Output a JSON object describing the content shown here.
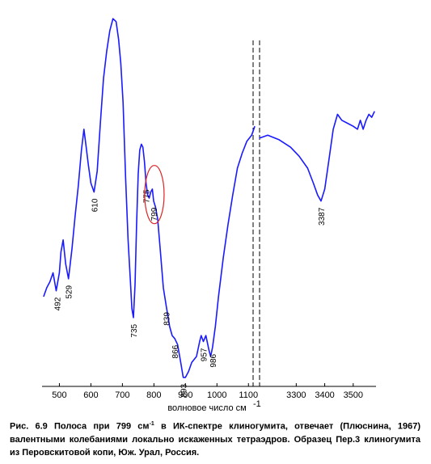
{
  "chart_data": {
    "type": "line",
    "xlabel": "волновое число см",
    "xlabel_superscript": "-1",
    "x_ticks_left": [
      500,
      600,
      700,
      800,
      900,
      1000,
      1100
    ],
    "x_ticks_right": [
      3300,
      3400,
      3500
    ],
    "xlim_left": [
      445,
      1125
    ],
    "xlim_right": [
      3160,
      3580
    ],
    "axis_break_at": 1125,
    "line_color": "#1a1aff",
    "highlight_color": "#dd2222",
    "series_left": {
      "x": [
        450,
        460,
        470,
        480,
        490,
        500,
        505,
        512,
        520,
        529,
        540,
        550,
        560,
        570,
        578,
        585,
        592,
        600,
        610,
        620,
        630,
        640,
        650,
        660,
        670,
        680,
        688,
        695,
        702,
        710,
        718,
        725,
        730,
        735,
        740,
        745,
        750,
        755,
        760,
        765,
        770,
        775,
        780,
        785,
        790,
        795,
        799,
        805,
        812,
        820,
        830,
        839,
        850,
        858,
        866,
        875,
        885,
        893,
        900,
        910,
        920,
        935,
        945,
        950,
        957,
        965,
        975,
        980,
        986,
        995,
        1005,
        1020,
        1035,
        1050,
        1065,
        1080,
        1095,
        1110,
        1120
      ],
      "y": [
        3.0,
        3.3,
        3.5,
        3.8,
        3.2,
        3.8,
        4.5,
        4.9,
        4.1,
        3.6,
        4.6,
        5.7,
        6.7,
        7.9,
        8.6,
        8.0,
        7.4,
        6.8,
        6.5,
        7.2,
        8.8,
        10.3,
        11.2,
        11.9,
        12.3,
        12.2,
        11.6,
        10.8,
        9.5,
        7.0,
        4.9,
        3.6,
        2.6,
        2.3,
        3.4,
        5.4,
        7.1,
        7.9,
        8.1,
        8.0,
        7.5,
        6.8,
        6.4,
        6.3,
        6.5,
        6.6,
        6.2,
        6.0,
        5.6,
        4.6,
        3.3,
        2.7,
        2.0,
        1.7,
        1.6,
        1.4,
        0.8,
        0.3,
        0.3,
        0.5,
        0.8,
        1.0,
        1.5,
        1.7,
        1.5,
        1.7,
        1.2,
        1.0,
        1.3,
        2.0,
        3.0,
        4.3,
        5.4,
        6.4,
        7.3,
        7.8,
        8.2,
        8.4,
        8.7
      ]
    },
    "series_right": {
      "x": [
        3170,
        3200,
        3240,
        3280,
        3310,
        3340,
        3360,
        3375,
        3387,
        3400,
        3415,
        3430,
        3445,
        3460,
        3480,
        3500,
        3515,
        3525,
        3535,
        3545,
        3555,
        3565,
        3575
      ],
      "y": [
        8.3,
        8.4,
        8.25,
        8.0,
        7.7,
        7.3,
        6.8,
        6.4,
        6.2,
        6.6,
        7.6,
        8.6,
        9.1,
        8.9,
        8.8,
        8.7,
        8.6,
        8.9,
        8.6,
        8.9,
        9.1,
        9.0,
        9.2
      ]
    },
    "ylim": [
      0,
      12.6
    ],
    "peak_labels": [
      {
        "x": 492,
        "y": 3.2,
        "label": "492"
      },
      {
        "x": 529,
        "y": 3.6,
        "label": "529"
      },
      {
        "x": 610,
        "y": 6.5,
        "label": "610"
      },
      {
        "x": 735,
        "y": 2.3,
        "label": "735"
      },
      {
        "x": 775,
        "y": 6.8,
        "label": "775"
      },
      {
        "x": 799,
        "y": 6.2,
        "label": "799"
      },
      {
        "x": 839,
        "y": 2.7,
        "label": "839"
      },
      {
        "x": 866,
        "y": 1.6,
        "label": "866"
      },
      {
        "x": 893,
        "y": 0.3,
        "label": "893"
      },
      {
        "x": 957,
        "y": 1.5,
        "label": "957"
      },
      {
        "x": 986,
        "y": 1.3,
        "label": "986"
      },
      {
        "x": 3387,
        "y": 6.2,
        "label": "3387"
      }
    ],
    "highlight_peak": 799
  },
  "caption": {
    "prefix": "Рис. 6.9 Полоса при 799 см",
    "sup": "-1",
    "rest": " в ИК-спектре клиногумита, отвечает (Плюснина, 1967) валентными колебаниями локально искаженных тетраэдров. Образец Пер.3 клиногумита из Перовскитовой копи, Юж. Урал, Россия."
  }
}
